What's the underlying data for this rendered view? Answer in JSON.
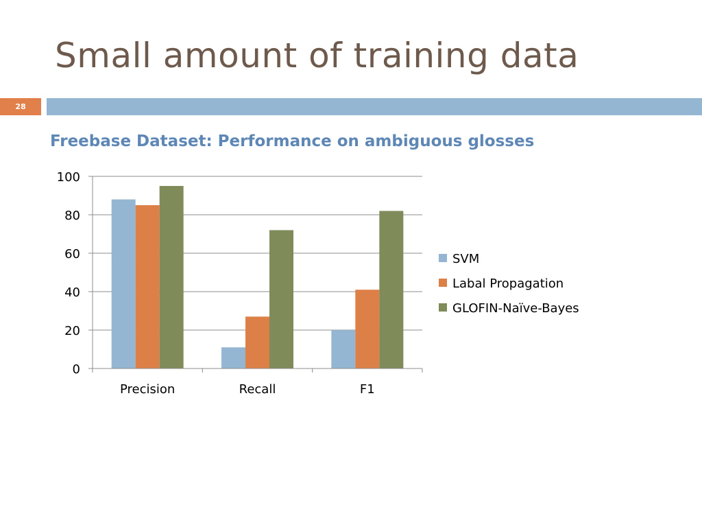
{
  "slide": {
    "title": "Small amount of training data",
    "number": "28"
  },
  "colors": {
    "title": "#6e5a4c",
    "accent_orange": "#e1804a",
    "header_bar": "#94b6d2",
    "chart_title": "#5e87b5"
  },
  "chart_data": {
    "type": "bar",
    "title": "Freebase Dataset: Performance on ambiguous glosses",
    "xlabel": "",
    "ylabel": "",
    "categories": [
      "Precision",
      "Recall",
      "F1"
    ],
    "series": [
      {
        "name": "SVM",
        "values": [
          88,
          11,
          20
        ],
        "color": "#94b6d2"
      },
      {
        "name": "Labal Propagation",
        "values": [
          85,
          27,
          41
        ],
        "color": "#dd8047"
      },
      {
        "name": "GLOFIN-Naïve-Bayes",
        "values": [
          95,
          72,
          82
        ],
        "color": "#7f8c5a"
      }
    ],
    "ylim": [
      0,
      100
    ],
    "yticks": [
      0,
      20,
      40,
      60,
      80,
      100
    ],
    "grid": true,
    "legend": "right"
  }
}
